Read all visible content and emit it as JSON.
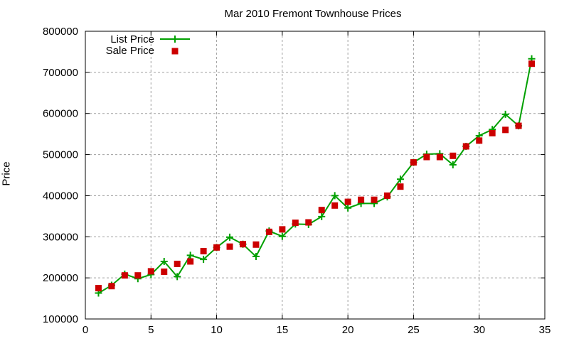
{
  "chart_data": {
    "type": "line",
    "title": "Mar 2010 Fremont Townhouse Prices",
    "xlabel": "",
    "ylabel": "Price",
    "xlim": [
      0,
      35
    ],
    "ylim": [
      100000,
      800000
    ],
    "xticks": [
      0,
      5,
      10,
      15,
      20,
      25,
      30,
      35
    ],
    "yticks": [
      100000,
      200000,
      300000,
      400000,
      500000,
      600000,
      700000,
      800000
    ],
    "grid": true,
    "legend_position": "top-left",
    "x": [
      1,
      2,
      3,
      4,
      5,
      6,
      7,
      8,
      9,
      10,
      11,
      12,
      13,
      14,
      15,
      16,
      17,
      18,
      19,
      20,
      21,
      22,
      23,
      24,
      25,
      26,
      27,
      28,
      29,
      30,
      31,
      32,
      33,
      34
    ],
    "series": [
      {
        "name": "List Price",
        "style": "line+cross",
        "color": "#00a000",
        "values": [
          163000,
          182000,
          209000,
          198000,
          208000,
          240000,
          203000,
          255000,
          245000,
          274000,
          299000,
          282000,
          252000,
          314000,
          301000,
          331000,
          330000,
          349000,
          400000,
          370000,
          381000,
          381000,
          397000,
          440000,
          481000,
          501000,
          502000,
          475000,
          520000,
          546000,
          561000,
          598000,
          570000,
          733000
        ]
      },
      {
        "name": "Sale Price",
        "style": "square-markers",
        "color": "#cc0000",
        "values": [
          175000,
          180000,
          206000,
          206000,
          216000,
          215000,
          234000,
          240000,
          265000,
          274000,
          276000,
          282000,
          281000,
          312000,
          318000,
          334000,
          335000,
          365000,
          376000,
          385000,
          390000,
          390000,
          400000,
          422000,
          481000,
          494000,
          494000,
          497000,
          520000,
          534000,
          552000,
          560000,
          570000,
          721000
        ]
      }
    ]
  },
  "ui": {
    "title": "Mar 2010 Fremont Townhouse Prices",
    "ylabel": "Price"
  }
}
